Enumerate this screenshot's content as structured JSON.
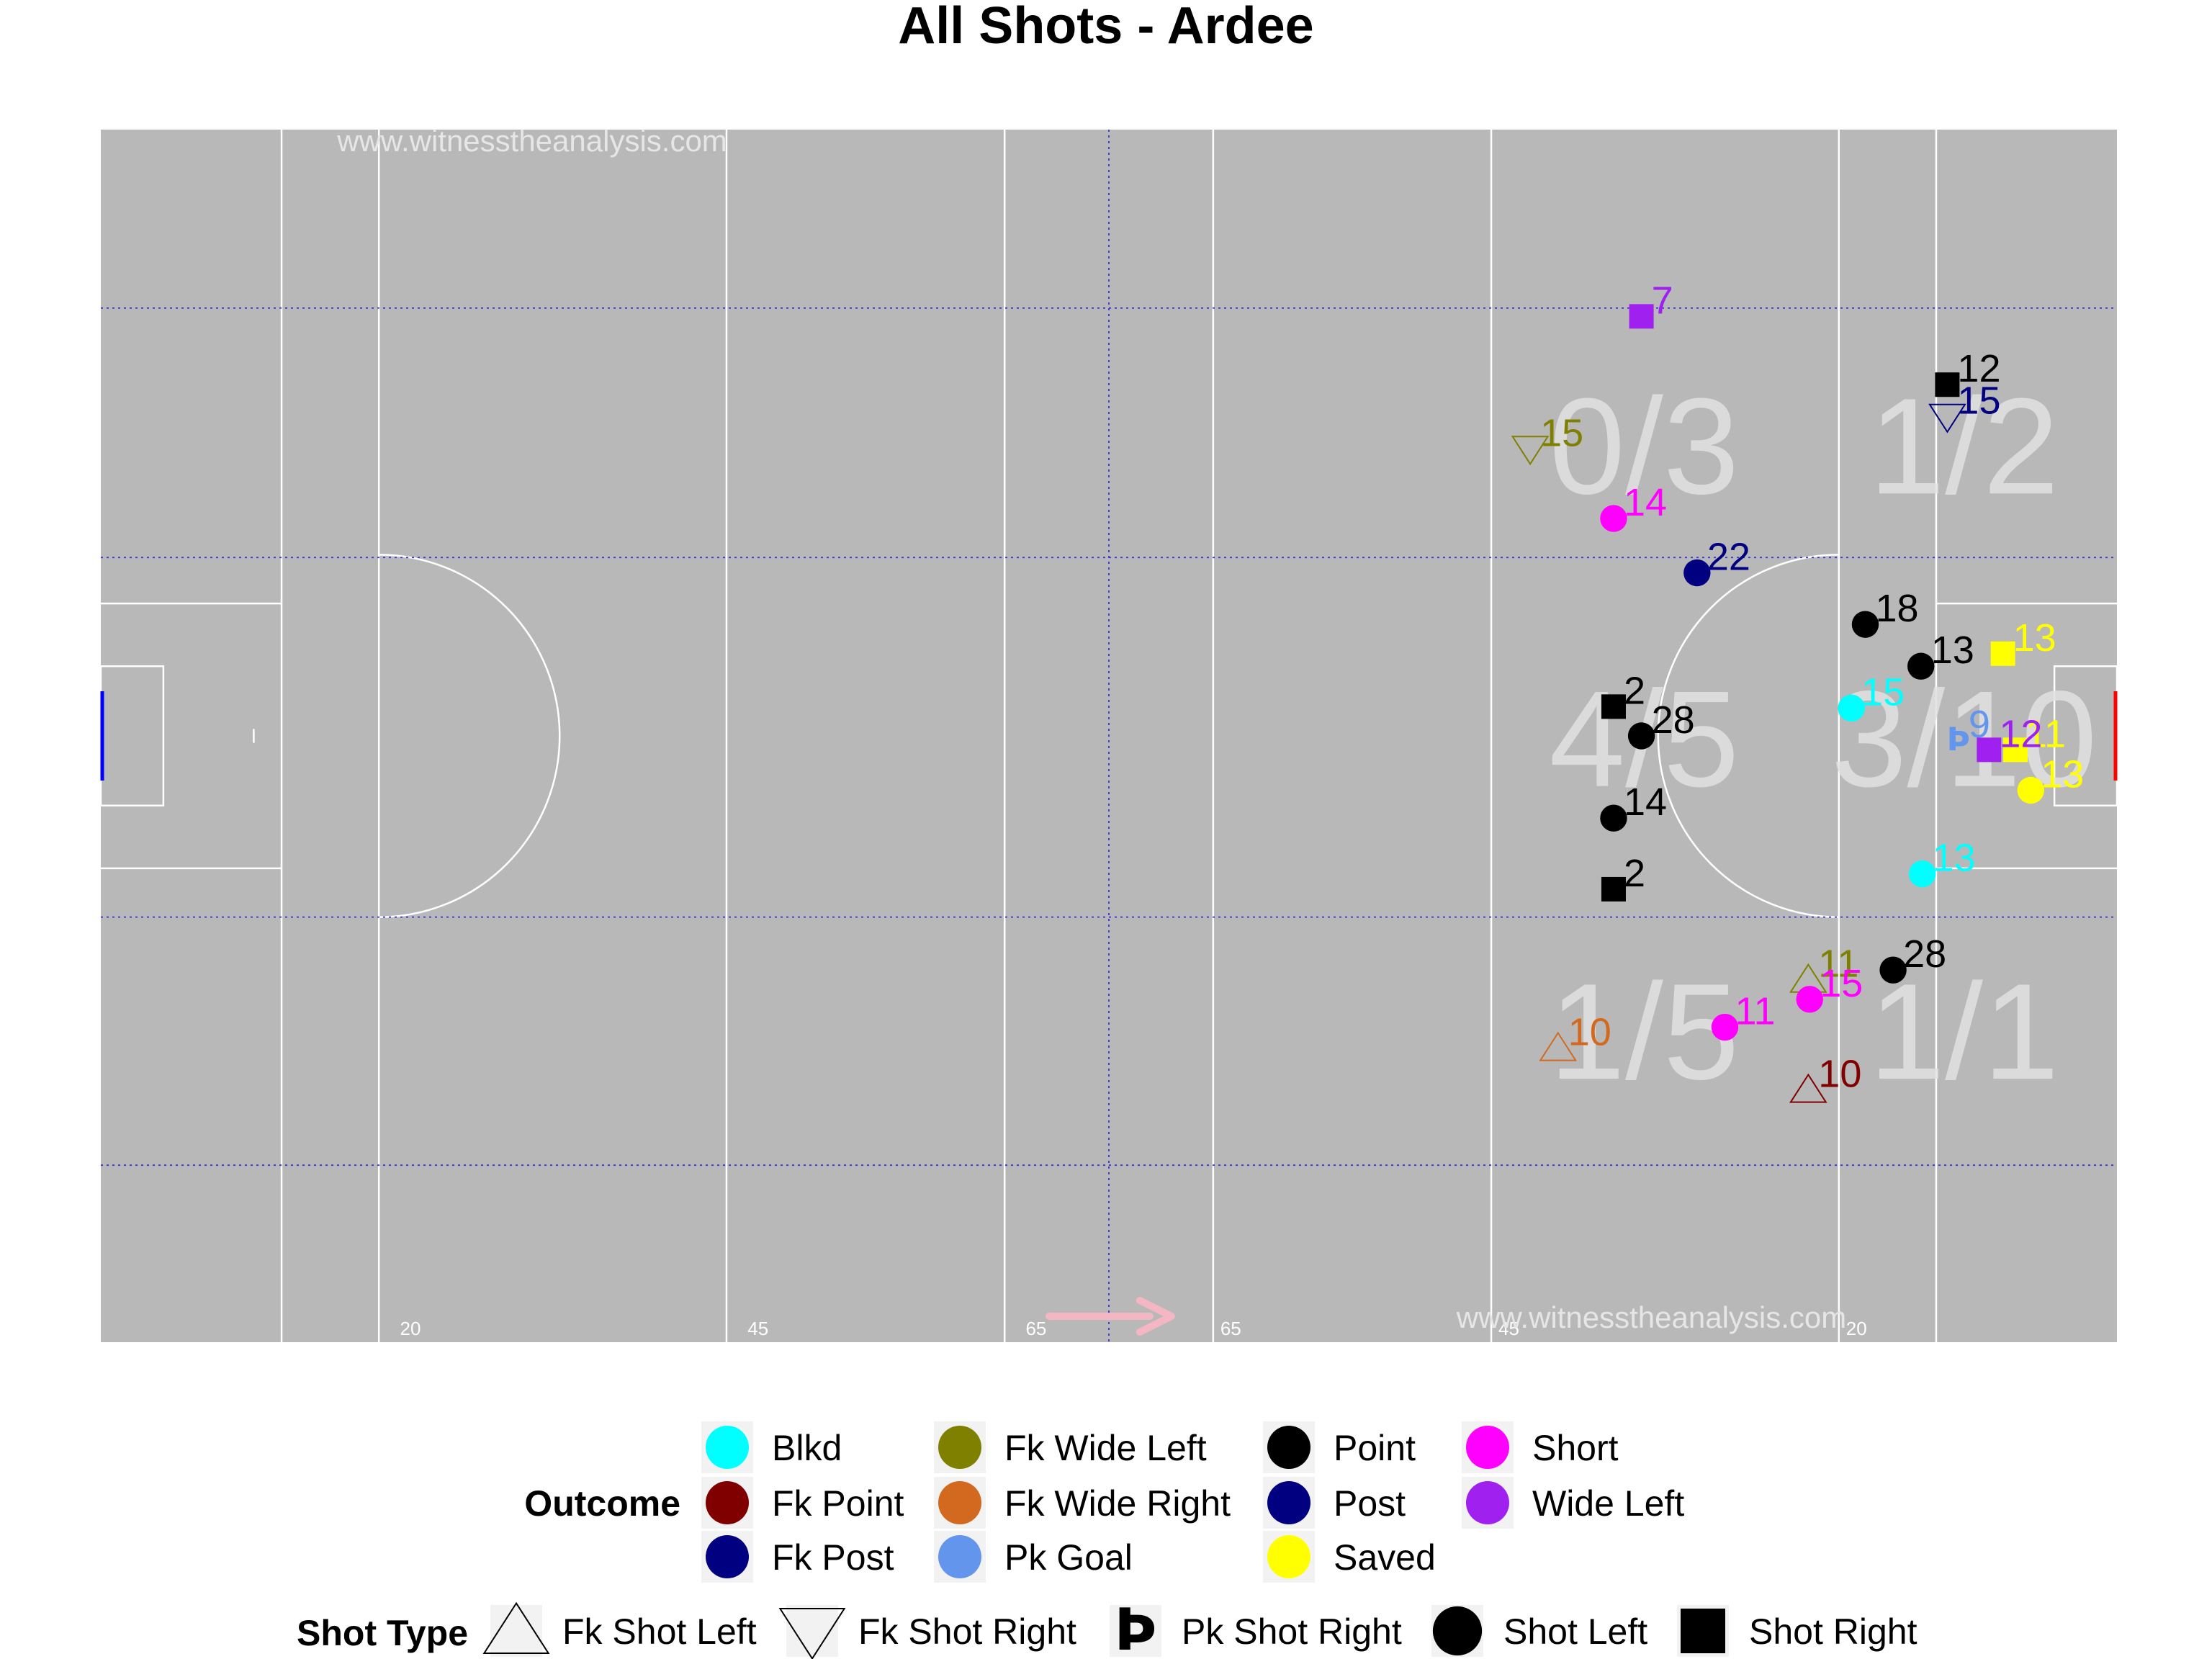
{
  "chart_data": {
    "type": "scatter",
    "title": "All Shots - Ardee",
    "watermark": "www.witnesstheanalysis.com",
    "pitch": {
      "x_range": [
        0,
        145
      ],
      "y_range": [
        0,
        87
      ],
      "attack_direction": "right",
      "distance_labels": [
        {
          "x": 21,
          "text": "20"
        },
        {
          "x": 46,
          "text": "45"
        },
        {
          "x": 66,
          "text": "65"
        },
        {
          "x": 80,
          "text": "65"
        },
        {
          "x": 100,
          "text": "45"
        },
        {
          "x": 125,
          "text": "20"
        }
      ]
    },
    "colors": {
      "Blkd": "#00ffff",
      "Fk Point": "#800000",
      "Fk Post": "#000080",
      "Fk Wide Left": "#808000",
      "Fk Wide Right": "#d2691e",
      "Pk Goal": "#6495ed",
      "Point": "#000000",
      "Post": "#000080",
      "Saved": "#ffff00",
      "Short": "#ff00ff",
      "Wide Left": "#a020f0"
    },
    "zone_labels": [
      {
        "x": 111,
        "y": 64,
        "text": "0/3"
      },
      {
        "x": 134,
        "y": 64,
        "text": "1/2"
      },
      {
        "x": 111,
        "y": 43,
        "text": "4/5"
      },
      {
        "x": 134,
        "y": 43,
        "text": "3/10"
      },
      {
        "x": 111,
        "y": 22,
        "text": "1/5"
      },
      {
        "x": 134,
        "y": 22,
        "text": "1/1"
      }
    ],
    "shots": [
      {
        "x": 110.8,
        "y": 73.6,
        "label": "7",
        "outcome": "Wide Left",
        "type": "Shot Right"
      },
      {
        "x": 132.8,
        "y": 68.7,
        "label": "12",
        "outcome": "Point",
        "type": "Shot Right"
      },
      {
        "x": 132.8,
        "y": 66.4,
        "label": "15",
        "outcome": "Fk Post",
        "type": "Fk Shot Right"
      },
      {
        "x": 102.8,
        "y": 64.1,
        "label": "15",
        "outcome": "Fk Wide Left",
        "type": "Fk Shot Right"
      },
      {
        "x": 108.8,
        "y": 59.1,
        "label": "14",
        "outcome": "Short",
        "type": "Shot Left"
      },
      {
        "x": 114.8,
        "y": 55.2,
        "label": "22",
        "outcome": "Post",
        "type": "Shot Left"
      },
      {
        "x": 126.9,
        "y": 51.5,
        "label": "18",
        "outcome": "Point",
        "type": "Shot Left"
      },
      {
        "x": 130.9,
        "y": 48.5,
        "label": "13",
        "outcome": "Point",
        "type": "Shot Left"
      },
      {
        "x": 136.8,
        "y": 49.4,
        "label": "13",
        "outcome": "Saved",
        "type": "Shot Right"
      },
      {
        "x": 108.8,
        "y": 45.6,
        "label": "2",
        "outcome": "Point",
        "type": "Shot Right"
      },
      {
        "x": 125.9,
        "y": 45.5,
        "label": "15",
        "outcome": "Blkd",
        "type": "Shot Left"
      },
      {
        "x": 110.8,
        "y": 43.5,
        "label": "28",
        "outcome": "Point",
        "type": "Shot Left"
      },
      {
        "x": 133.6,
        "y": 43.2,
        "label": "9",
        "outcome": "Pk Goal",
        "type": "Pk Shot Right"
      },
      {
        "x": 137.7,
        "y": 42.5,
        "label": "11",
        "outcome": "Saved",
        "type": "Shot Right"
      },
      {
        "x": 135.8,
        "y": 42.5,
        "label": "12",
        "outcome": "Wide Left",
        "type": "Shot Right"
      },
      {
        "x": 138.8,
        "y": 39.6,
        "label": "13",
        "outcome": "Saved",
        "type": "Shot Left"
      },
      {
        "x": 108.8,
        "y": 37.6,
        "label": "14",
        "outcome": "Point",
        "type": "Shot Left"
      },
      {
        "x": 131.0,
        "y": 33.6,
        "label": "13",
        "outcome": "Blkd",
        "type": "Shot Left"
      },
      {
        "x": 108.8,
        "y": 32.5,
        "label": "2",
        "outcome": "Point",
        "type": "Shot Right"
      },
      {
        "x": 128.9,
        "y": 26.7,
        "label": "28",
        "outcome": "Point",
        "type": "Shot Left"
      },
      {
        "x": 122.8,
        "y": 26.0,
        "label": "11",
        "outcome": "Fk Wide Left",
        "type": "Fk Shot Left"
      },
      {
        "x": 122.9,
        "y": 24.6,
        "label": "15",
        "outcome": "Short",
        "type": "Shot Left"
      },
      {
        "x": 116.8,
        "y": 22.6,
        "label": "11",
        "outcome": "Short",
        "type": "Shot Left"
      },
      {
        "x": 104.8,
        "y": 21.1,
        "label": "10",
        "outcome": "Fk Wide Right",
        "type": "Fk Shot Left"
      },
      {
        "x": 122.8,
        "y": 18.1,
        "label": "10",
        "outcome": "Fk Point",
        "type": "Fk Shot Left"
      }
    ],
    "legend": {
      "outcome_title": "Outcome",
      "outcome_items": [
        "Blkd",
        "Fk Point",
        "Fk Post",
        "Fk Wide Left",
        "Fk Wide Right",
        "Pk Goal",
        "Point",
        "Post",
        "Saved",
        "Short",
        "Wide Left"
      ],
      "shape_title": "Shot Type",
      "shape_items": [
        "Fk Shot Left",
        "Fk Shot Right",
        "Pk Shot Right",
        "Shot Left",
        "Shot Right"
      ],
      "placement": "bottom"
    }
  }
}
